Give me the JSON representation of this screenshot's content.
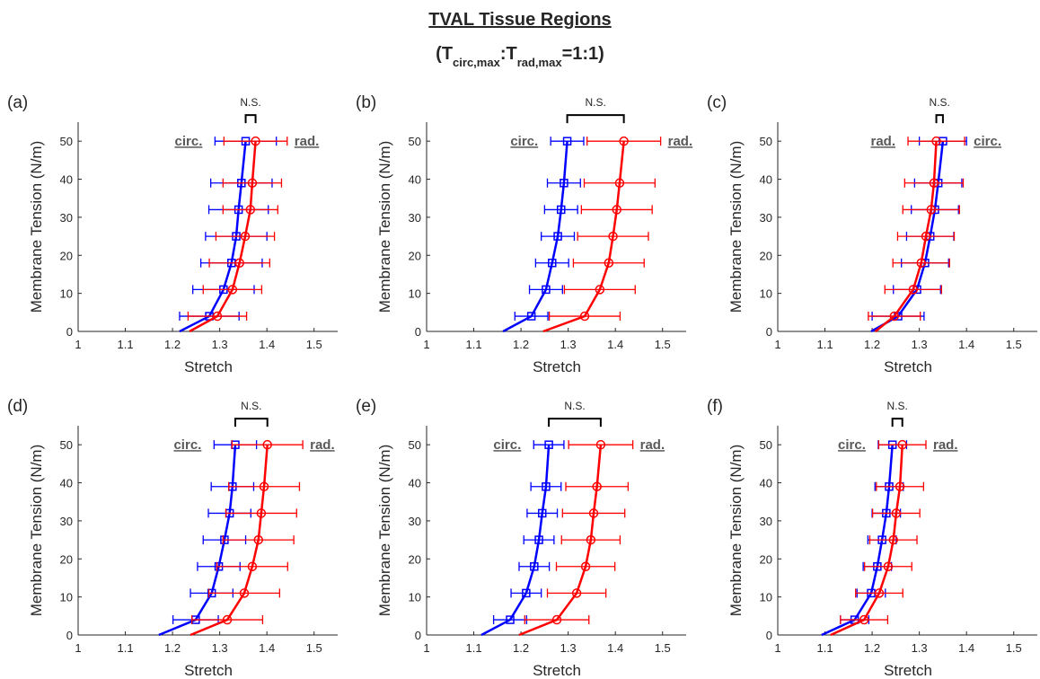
{
  "figure": {
    "title": "TVAL Tissue Regions",
    "subtitle": [
      "(T",
      "circ,max",
      ":T",
      "rad,max",
      "=1:1)"
    ]
  },
  "chart_data": [
    {
      "type": "errorbar",
      "label": "(a)",
      "xlabel": "Stretch",
      "ylabel": "Membrane Tension (N/m)",
      "annotation": "N.S.",
      "xlim": [
        1,
        1.55
      ],
      "ylim": [
        0,
        55
      ],
      "xticks": [
        1,
        1.1,
        1.2,
        1.3,
        1.4,
        1.5
      ],
      "yticks": [
        0,
        10,
        20,
        30,
        40,
        50
      ],
      "series": [
        {
          "name": "circ.",
          "color": "#0000ff",
          "marker": "square",
          "y": [
            0,
            4,
            11,
            18,
            25,
            32,
            39,
            50
          ],
          "x": [
            1.215,
            1.278,
            1.308,
            1.325,
            1.335,
            1.34,
            1.346,
            1.355
          ],
          "xerr": [
            null,
            0.063,
            0.065,
            0.065,
            0.065,
            0.063,
            0.065,
            0.065
          ]
        },
        {
          "name": "rad.",
          "color": "#ff0000",
          "marker": "circle",
          "y": [
            0,
            4,
            11,
            18,
            25,
            32,
            39,
            50
          ],
          "x": [
            1.236,
            1.295,
            1.327,
            1.342,
            1.354,
            1.365,
            1.369,
            1.376
          ],
          "xerr": [
            null,
            0.062,
            0.062,
            0.064,
            0.062,
            0.058,
            0.062,
            0.067
          ]
        }
      ]
    },
    {
      "type": "errorbar",
      "label": "(b)",
      "xlabel": "Stretch",
      "ylabel": "Membrane Tension (N/m)",
      "annotation": "N.S.",
      "xlim": [
        1,
        1.55
      ],
      "ylim": [
        0,
        55
      ],
      "xticks": [
        1,
        1.1,
        1.2,
        1.3,
        1.4,
        1.5
      ],
      "yticks": [
        0,
        10,
        20,
        30,
        40,
        50
      ],
      "series": [
        {
          "name": "circ.",
          "color": "#0000ff",
          "marker": "square",
          "y": [
            0,
            4,
            11,
            18,
            25,
            32,
            39,
            50
          ],
          "x": [
            1.162,
            1.222,
            1.253,
            1.266,
            1.278,
            1.285,
            1.291,
            1.298
          ],
          "xerr": [
            null,
            0.035,
            0.035,
            0.035,
            0.035,
            0.035,
            0.035,
            0.035
          ]
        },
        {
          "name": "rad.",
          "color": "#ff0000",
          "marker": "circle",
          "y": [
            0,
            4,
            11,
            18,
            25,
            32,
            39,
            50
          ],
          "x": [
            1.247,
            1.335,
            1.367,
            1.386,
            1.395,
            1.403,
            1.409,
            1.418
          ],
          "xerr": [
            null,
            0.075,
            0.075,
            0.075,
            0.075,
            0.075,
            0.075,
            0.078
          ]
        }
      ]
    },
    {
      "type": "errorbar",
      "label": "(c)",
      "xlabel": "Stretch",
      "ylabel": "Membrane Tension (N/m)",
      "annotation": "N.S.",
      "xlim": [
        1,
        1.55
      ],
      "ylim": [
        0,
        55
      ],
      "xticks": [
        1,
        1.1,
        1.2,
        1.3,
        1.4,
        1.5
      ],
      "yticks": [
        0,
        10,
        20,
        30,
        40,
        50
      ],
      "series": [
        {
          "name": "circ.",
          "color": "#0000ff",
          "marker": "square",
          "y": [
            0,
            4,
            11,
            18,
            25,
            32,
            39,
            50
          ],
          "x": [
            1.198,
            1.255,
            1.295,
            1.312,
            1.323,
            1.333,
            1.34,
            1.35
          ],
          "xerr": [
            null,
            0.055,
            0.05,
            0.05,
            0.05,
            0.05,
            0.05,
            0.05
          ]
        },
        {
          "name": "rad.",
          "color": "#ff0000",
          "marker": "circle",
          "y": [
            0,
            4,
            11,
            18,
            25,
            32,
            39,
            50
          ],
          "x": [
            1.207,
            1.247,
            1.287,
            1.304,
            1.314,
            1.325,
            1.331,
            1.336
          ],
          "xerr": [
            null,
            0.055,
            0.06,
            0.06,
            0.06,
            0.06,
            0.062,
            0.06
          ]
        }
      ]
    },
    {
      "type": "errorbar",
      "label": "(d)",
      "xlabel": "Stretch",
      "ylabel": "Membrane Tension (N/m)",
      "annotation": "N.S.",
      "xlim": [
        1,
        1.55
      ],
      "ylim": [
        0,
        55
      ],
      "xticks": [
        1,
        1.1,
        1.2,
        1.3,
        1.4,
        1.5
      ],
      "yticks": [
        0,
        10,
        20,
        30,
        40,
        50
      ],
      "series": [
        {
          "name": "circ.",
          "color": "#0000ff",
          "marker": "square",
          "y": [
            0,
            4,
            11,
            18,
            25,
            32,
            39,
            50
          ],
          "x": [
            1.171,
            1.249,
            1.283,
            1.298,
            1.31,
            1.321,
            1.327,
            1.333
          ],
          "xerr": [
            null,
            0.048,
            0.045,
            0.045,
            0.045,
            0.045,
            0.045,
            0.045
          ]
        },
        {
          "name": "rad.",
          "color": "#ff0000",
          "marker": "circle",
          "y": [
            0,
            4,
            11,
            18,
            25,
            32,
            39,
            50
          ],
          "x": [
            1.238,
            1.316,
            1.352,
            1.369,
            1.382,
            1.388,
            1.394,
            1.401
          ],
          "xerr": [
            null,
            0.075,
            0.075,
            0.075,
            0.075,
            0.075,
            0.075,
            0.075
          ]
        }
      ]
    },
    {
      "type": "errorbar",
      "label": "(e)",
      "xlabel": "Stretch",
      "ylabel": "Membrane Tension (N/m)",
      "annotation": "N.S.",
      "xlim": [
        1,
        1.55
      ],
      "ylim": [
        0,
        55
      ],
      "xticks": [
        1,
        1.1,
        1.2,
        1.3,
        1.4,
        1.5
      ],
      "yticks": [
        0,
        10,
        20,
        30,
        40,
        50
      ],
      "series": [
        {
          "name": "circ.",
          "color": "#0000ff",
          "marker": "square",
          "y": [
            0,
            4,
            11,
            18,
            25,
            32,
            39,
            50
          ],
          "x": [
            1.116,
            1.177,
            1.211,
            1.228,
            1.238,
            1.245,
            1.253,
            1.259
          ],
          "xerr": [
            null,
            0.035,
            0.032,
            0.032,
            0.032,
            0.032,
            0.032,
            0.032
          ]
        },
        {
          "name": "rad.",
          "color": "#ff0000",
          "marker": "circle",
          "y": [
            0,
            4,
            11,
            18,
            25,
            32,
            39,
            50
          ],
          "x": [
            1.196,
            1.276,
            1.318,
            1.337,
            1.348,
            1.354,
            1.361,
            1.369
          ],
          "xerr": [
            null,
            0.068,
            0.062,
            0.062,
            0.062,
            0.066,
            0.066,
            0.068
          ]
        }
      ]
    },
    {
      "type": "errorbar",
      "label": "(f)",
      "xlabel": "Stretch",
      "ylabel": "Membrane Tension (N/m)",
      "annotation": "N.S.",
      "xlim": [
        1,
        1.55
      ],
      "ylim": [
        0,
        55
      ],
      "xticks": [
        1,
        1.1,
        1.2,
        1.3,
        1.4,
        1.5
      ],
      "yticks": [
        0,
        10,
        20,
        30,
        40,
        50
      ],
      "series": [
        {
          "name": "circ.",
          "color": "#0000ff",
          "marker": "square",
          "y": [
            0,
            4,
            11,
            18,
            25,
            32,
            39,
            50
          ],
          "x": [
            1.093,
            1.163,
            1.198,
            1.211,
            1.221,
            1.23,
            1.236,
            1.243
          ],
          "xerr": [
            null,
            0.03,
            0.03,
            0.03,
            0.03,
            0.03,
            0.03,
            0.03
          ]
        },
        {
          "name": "rad.",
          "color": "#ff0000",
          "marker": "circle",
          "y": [
            0,
            4,
            11,
            18,
            25,
            32,
            39,
            50
          ],
          "x": [
            1.112,
            1.183,
            1.215,
            1.234,
            1.245,
            1.251,
            1.259,
            1.264
          ],
          "xerr": [
            null,
            0.05,
            0.05,
            0.05,
            0.05,
            0.05,
            0.05,
            0.05
          ]
        }
      ]
    }
  ]
}
